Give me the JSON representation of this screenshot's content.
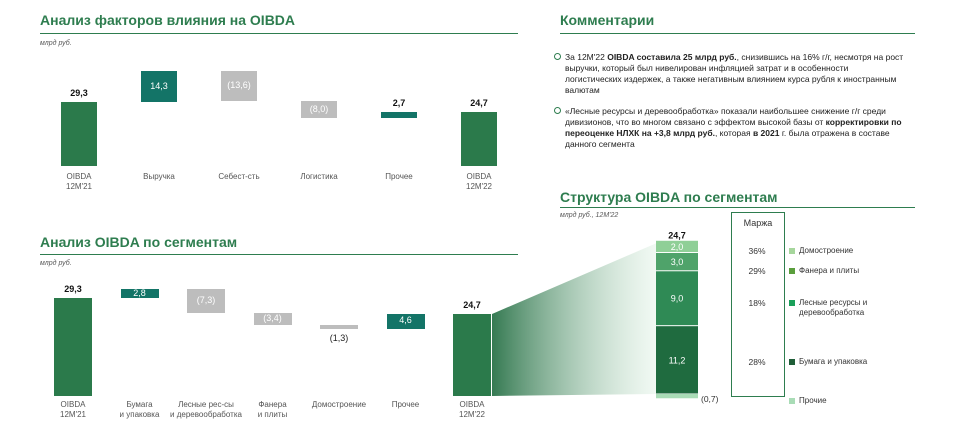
{
  "sections": {
    "factors": {
      "title": "Анализ факторов влияния на OIBDA",
      "unit": "млрд руб."
    },
    "comments": {
      "title": "Комментарии"
    },
    "segments": {
      "title": "Анализ OIBDA по сегментам",
      "unit": "млрд руб."
    },
    "structure": {
      "title": "Структура OIBDA по сегментам",
      "unit": "млрд руб., 12М'22"
    }
  },
  "comments": [
    {
      "parts": [
        {
          "text": "За 12М'22 ",
          "bold": false
        },
        {
          "text": "OIBDA составила 25 млрд руб.",
          "bold": true
        },
        {
          "text": ", снизившись на 16% г/г, несмотря на рост выручки, который был нивелирован инфляцией затрат и в особенности логистических издержек, а также негативным влиянием курса рубля к иностранным валютам",
          "bold": false
        }
      ]
    },
    {
      "parts": [
        {
          "text": "«Лесные ресурсы и деревообработка» показали наибольшее снижение г/г среди дивизионов, что во многом связано с эффектом высокой базы  от ",
          "bold": false
        },
        {
          "text": "корректировки по переоценке НЛХК на +3,8 млрд руб.",
          "bold": true
        },
        {
          "text": ", которая ",
          "bold": false
        },
        {
          "text": "в 2021",
          "bold": true
        },
        {
          "text": " г. была отражена в составе данного сегмента",
          "bold": false
        }
      ]
    }
  ],
  "chart_data": [
    {
      "type": "bar",
      "subtype": "waterfall",
      "title": "Анализ факторов влияния на OIBDA",
      "unit": "млрд руб.",
      "categories": [
        "OIBDA 12M'21",
        "Выручка",
        "Себест-сть",
        "Логистика",
        "Прочее",
        "OIBDA 12M'22"
      ],
      "category_lines": [
        [
          "OIBDA",
          "12M'21"
        ],
        [
          "Выручка"
        ],
        [
          "Себест-сть"
        ],
        [
          "Логистика"
        ],
        [
          "Прочее"
        ],
        [
          "OIBDA",
          "12M'22"
        ]
      ],
      "values": [
        29.3,
        14.3,
        -13.6,
        -8.0,
        2.7,
        24.7
      ],
      "kinds": [
        "total",
        "delta",
        "delta",
        "delta",
        "delta",
        "total"
      ],
      "labels": [
        "29,3",
        "14,3",
        "(13,6)",
        "(8,0)",
        "2,7",
        "24,7"
      ],
      "label_position": [
        "outside",
        "inside",
        "inside",
        "inside",
        "outside",
        "outside"
      ]
    },
    {
      "type": "bar",
      "subtype": "waterfall",
      "title": "Анализ OIBDA по сегментам",
      "unit": "млрд руб.",
      "categories": [
        "OIBDA 12M'21",
        "Бумага и упаковка",
        "Лесные рес-сы и деревообработка",
        "Фанера и плиты",
        "Домостроение",
        "Прочее",
        "OIBDA 12M'22"
      ],
      "category_lines": [
        [
          "OIBDA",
          "12M'21"
        ],
        [
          "Бумага",
          "и упаковка"
        ],
        [
          "Лесные рес-сы",
          "и деревообработка"
        ],
        [
          "Фанера",
          "и плиты"
        ],
        [
          "Домостроение"
        ],
        [
          "Прочее"
        ],
        [
          "OIBDA",
          "12M'22"
        ]
      ],
      "values": [
        29.3,
        2.8,
        -7.3,
        -3.4,
        -1.3,
        4.6,
        24.7
      ],
      "kinds": [
        "total",
        "delta",
        "delta",
        "delta",
        "delta",
        "delta",
        "total"
      ],
      "labels": [
        "29,3",
        "2,8",
        "(7,3)",
        "(3,4)",
        "(1,3)",
        "4,6",
        "24,7"
      ],
      "label_position": [
        "outside",
        "inside",
        "inside",
        "inside",
        "below",
        "inside",
        "outside"
      ]
    },
    {
      "type": "bar",
      "subtype": "stacked",
      "title": "Структура OIBDA по сегментам",
      "unit": "млрд руб., 12М'22",
      "total": 24.7,
      "total_label": "24,7",
      "stack": [
        {
          "name": "Бумага и упаковка",
          "value": 11.2,
          "label": "11,2",
          "margin": "28%",
          "color": "#1f6b3f"
        },
        {
          "name": "Лесные ресурсы и деревообработка",
          "value": 9.0,
          "label": "9,0",
          "margin": "18%",
          "color": "#2f8a55"
        },
        {
          "name": "Фанера и плиты",
          "value": 3.0,
          "label": "3,0",
          "margin": "29%",
          "color": "#4fa36a"
        },
        {
          "name": "Домостроение",
          "value": 2.0,
          "label": "2,0",
          "margin": "36%",
          "color": "#8fcf97"
        }
      ],
      "negative": {
        "name": "Прочие",
        "value": -0.7,
        "label": "(0,7)",
        "color": "#a9dcb6"
      },
      "margin_header": "Маржа",
      "legend": [
        {
          "name": "Домостроение",
          "color": "#a6d69c",
          "margin": "36%"
        },
        {
          "name": "Фанера и плиты",
          "color": "#5a9e3c",
          "margin": "29%"
        },
        {
          "name": "Лесные ресурсы и деревообработка",
          "color": "#1aa05a",
          "margin": "18%"
        },
        {
          "name": "Бумага и упаковка",
          "color": "#1f5e38",
          "margin": "28%"
        },
        {
          "name": "Прочие",
          "color": "#a9dcb6",
          "margin": ""
        }
      ]
    }
  ],
  "colors": {
    "accent": "#2e7d4f",
    "total": "#2b7a4b",
    "positive": "#137467",
    "negative": "#bdbdbd"
  }
}
